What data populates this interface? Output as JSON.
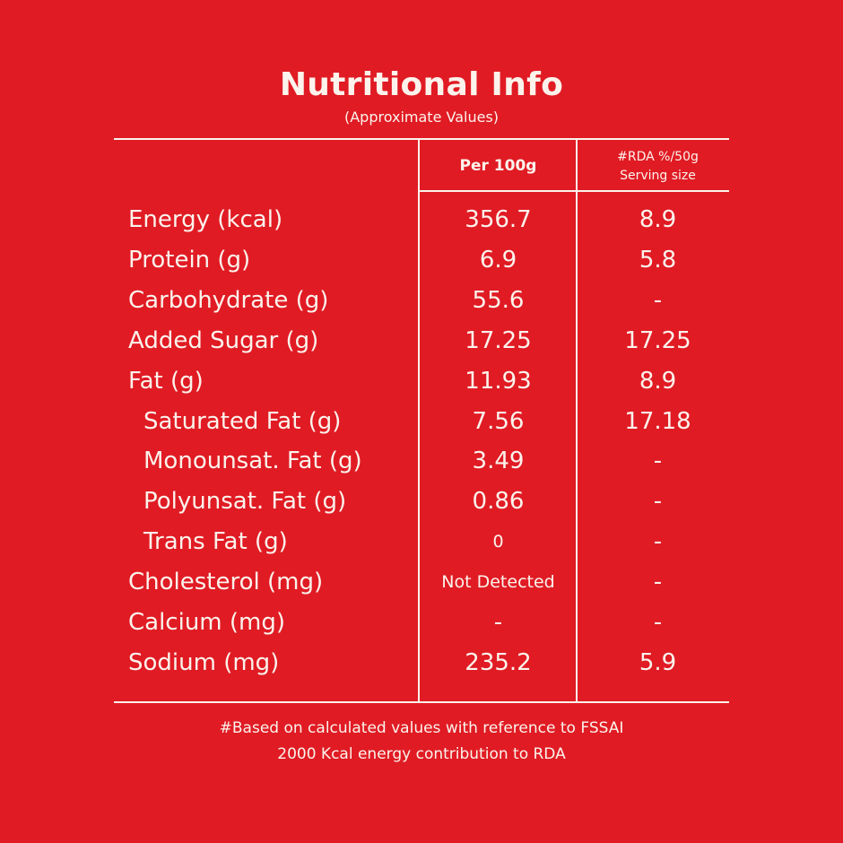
{
  "header": {
    "title": "Nutritional Info",
    "subtitle": "(Approximate Values)"
  },
  "table": {
    "col_per": "Per 100g",
    "col_rda_line1": "#RDA %/50g",
    "col_rda_line2": "Serving size",
    "rows": [
      {
        "label": "Energy (kcal)",
        "per100": "356.7",
        "rda": "8.9"
      },
      {
        "label": "Protein (g)",
        "per100": "6.9",
        "rda": "5.8"
      },
      {
        "label": "Carbohydrate (g)",
        "per100": "55.6",
        "rda": "-"
      },
      {
        "label": "Added Sugar (g)",
        "per100": "17.25",
        "rda": "17.25"
      },
      {
        "label": "Fat (g)",
        "per100": "11.93",
        "rda": "8.9"
      },
      {
        "label": "Saturated Fat (g)",
        "per100": "7.56",
        "rda": "17.18"
      },
      {
        "label": "Monounsat. Fat (g)",
        "per100": "3.49",
        "rda": "-"
      },
      {
        "label": "Polyunsat. Fat (g)",
        "per100": "0.86",
        "rda": "-"
      },
      {
        "label": "Trans Fat (g)",
        "per100": "0",
        "rda": "-"
      },
      {
        "label": "Cholesterol (mg)",
        "per100": "Not Detected",
        "rda": "-"
      },
      {
        "label": "Calcium (mg)",
        "per100": "-",
        "rda": "-"
      },
      {
        "label": "Sodium (mg)",
        "per100": "235.2",
        "rda": "5.9"
      }
    ]
  },
  "footnote": {
    "line1": "#Based on calculated values with reference to FSSAI",
    "line2": "2000 Kcal energy contribution to RDA"
  },
  "colors": {
    "background": "#e01b24",
    "text": "#fbf3ec"
  }
}
